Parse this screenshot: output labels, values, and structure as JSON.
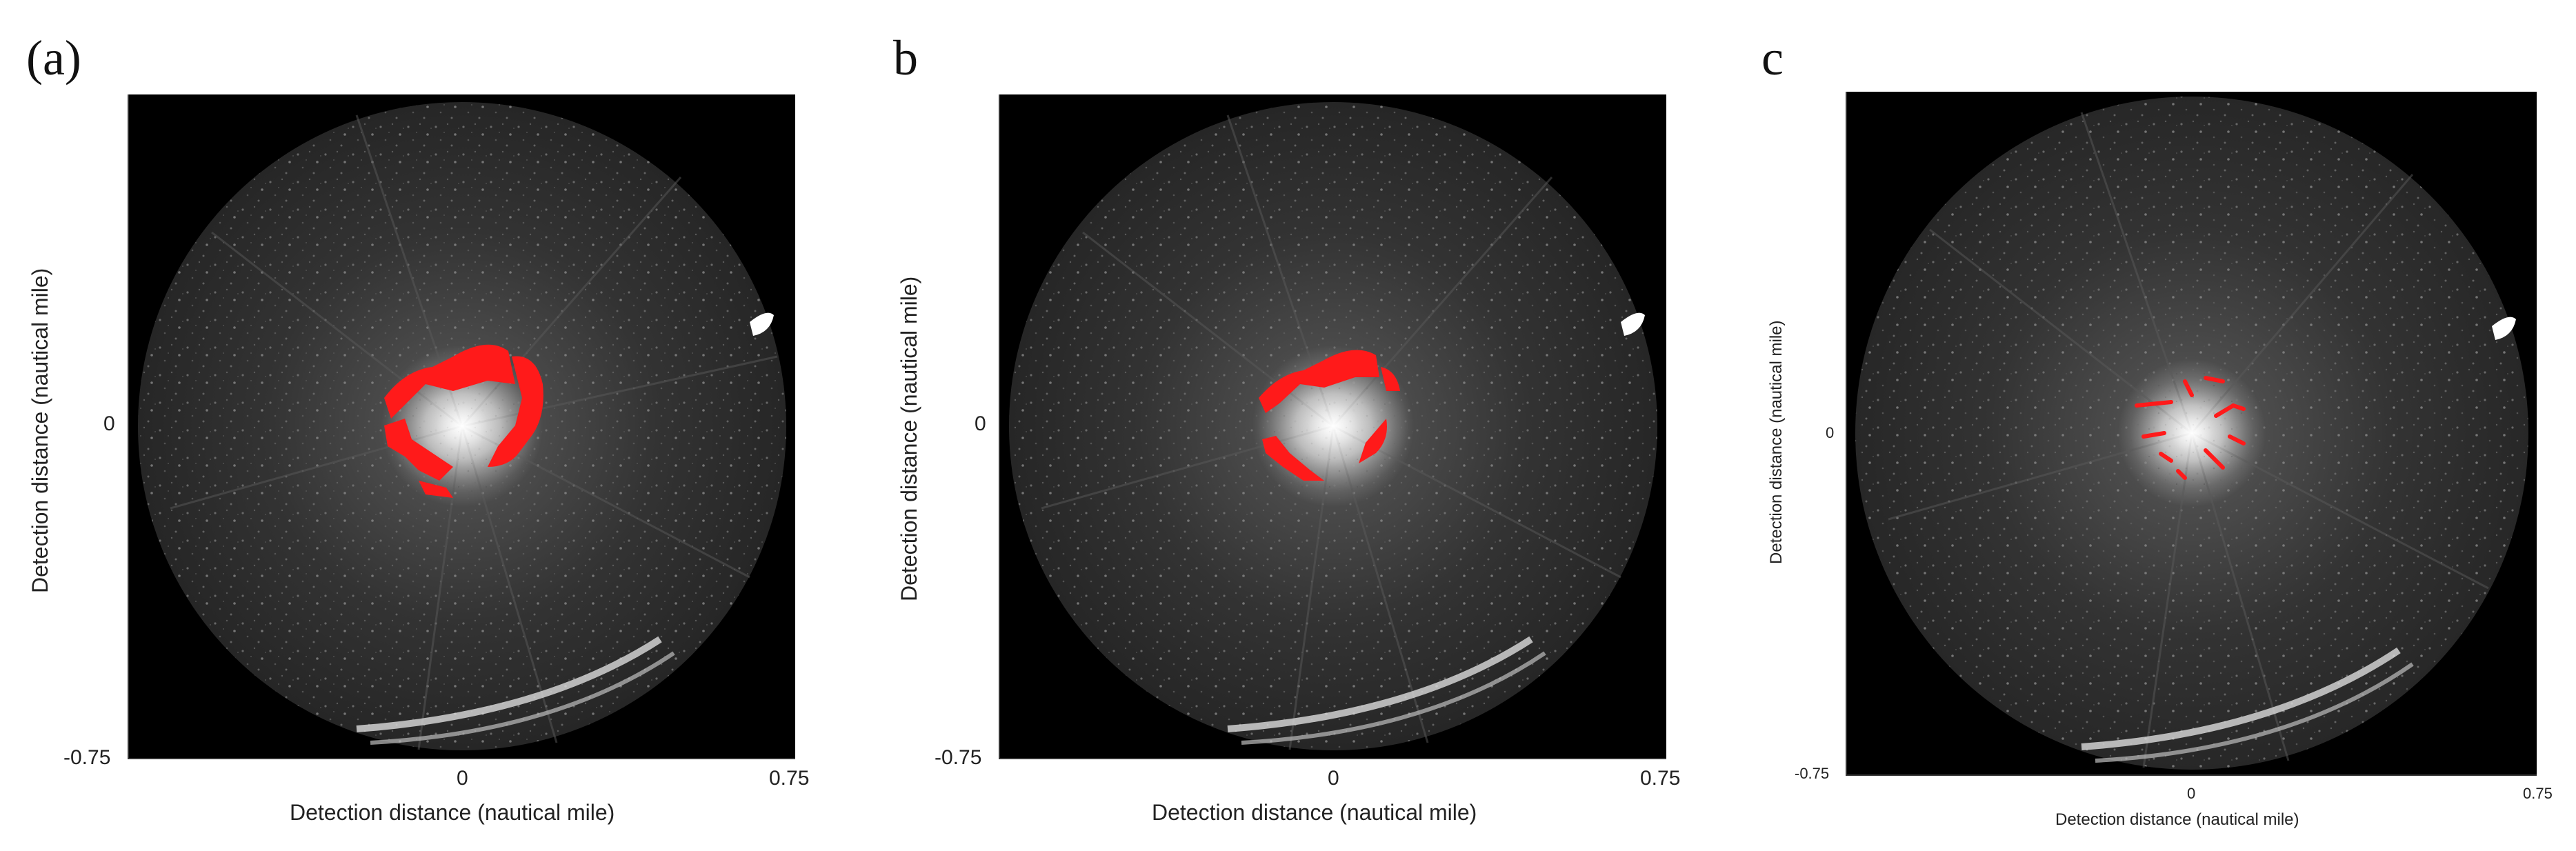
{
  "panels": [
    {
      "label": "(a)",
      "xlabel": "Detection distance (nautical mile)",
      "ylabel": "Detection distance (nautical mile)",
      "x_ticks": [
        "0",
        "0.75"
      ],
      "y_ticks": [
        "0",
        "-0.75"
      ]
    },
    {
      "label": "b",
      "xlabel": "Detection distance (nautical mile)",
      "ylabel": "Detection distance (nautical mile)",
      "x_ticks": [
        "0",
        "0.75"
      ],
      "y_ticks": [
        "0",
        "-0.75"
      ]
    },
    {
      "label": "c",
      "xlabel": "Detection distance (nautical mile)",
      "ylabel": "Detection distance (nautical mile)",
      "x_ticks": [
        "0",
        "0.75"
      ],
      "y_ticks": [
        "0",
        "-0.75"
      ]
    }
  ],
  "colors": {
    "background": "#000000",
    "radar_disc": "#2b2b2b",
    "clutter_highlight": "#ff1a1a",
    "echo": "#f2f2f2"
  }
}
